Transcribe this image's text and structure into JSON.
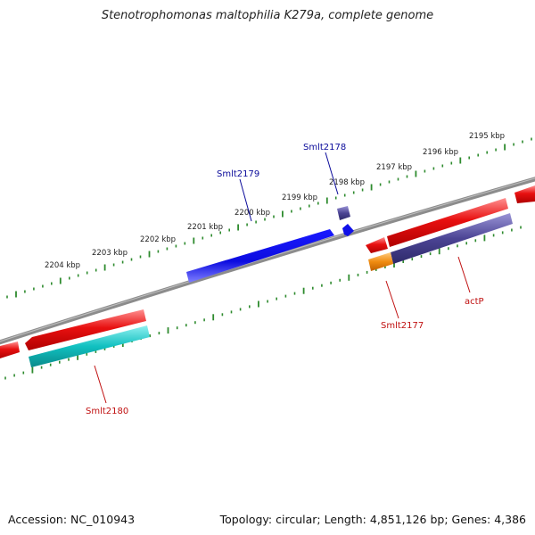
{
  "title": "Stenotrophomonas maltophilia K279a, complete genome",
  "footer": {
    "accession": "Accession: NC_010943",
    "topology": "Topology: circular; Length: 4,851,126 bp; Genes: 4,386"
  },
  "colors": {
    "backbone": "#8c8c8c",
    "tick_upper": "#2e8b2e",
    "tick_lower": "#2e8b2e",
    "cds_red": "#e81010",
    "gene_blue": "#1010e8",
    "gene_indigo": "#4b4494",
    "gene_cyan": "#10c0c0",
    "gene_orange": "#f08c10",
    "label_forward": "#0a0a9a",
    "label_reverse": "#c01010"
  },
  "tick_labels": [
    "2195 kbp",
    "2196 kbp",
    "2197 kbp",
    "2198 kbp",
    "2199 kbp",
    "2200 kbp",
    "2201 kbp",
    "2202 kbp",
    "2203 kbp",
    "2204 kbp"
  ],
  "gene_labels": [
    {
      "name": "Smlt2178",
      "strand": "forward"
    },
    {
      "name": "Smlt2179",
      "strand": "forward"
    },
    {
      "name": "Smlt2177",
      "strand": "reverse"
    },
    {
      "name": "actP",
      "strand": "reverse"
    },
    {
      "name": "Smlt2180",
      "strand": "reverse"
    }
  ]
}
